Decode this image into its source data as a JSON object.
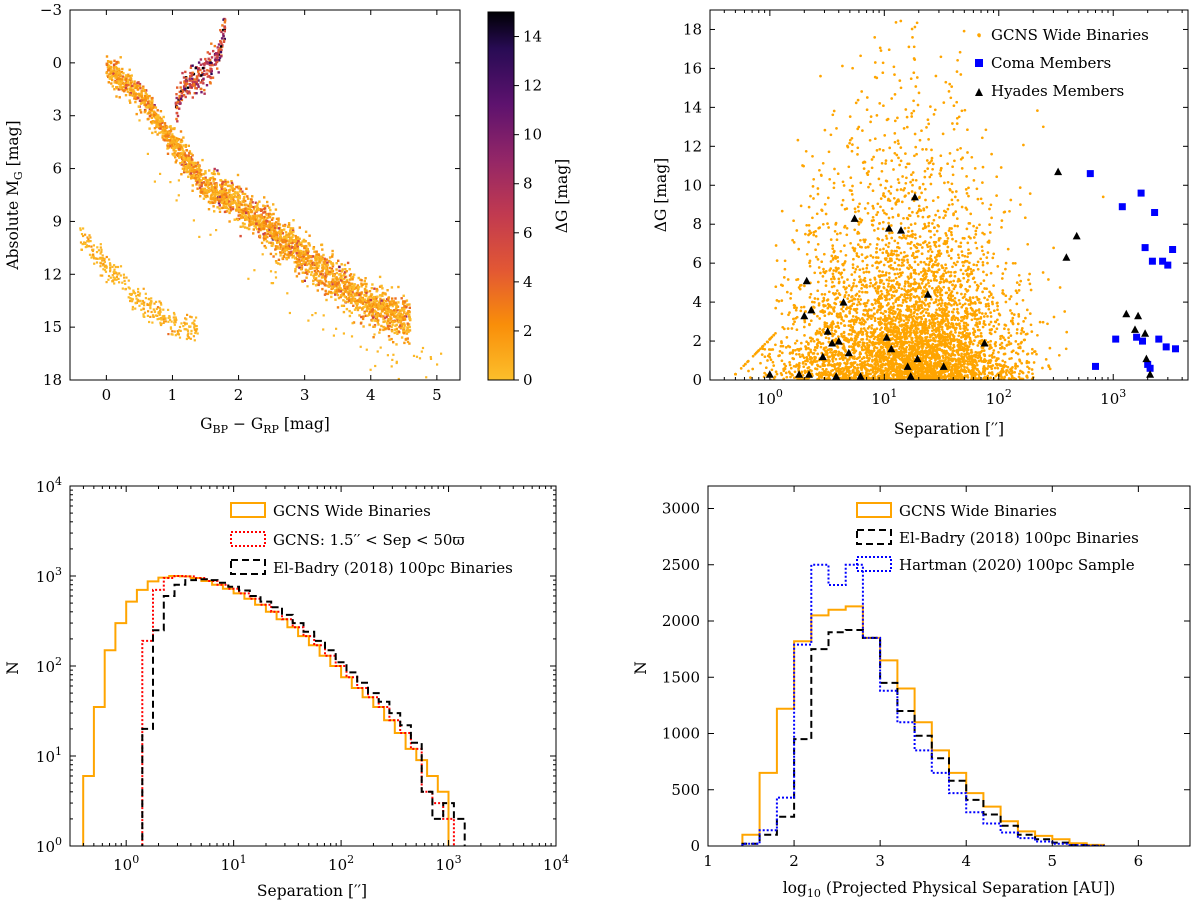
{
  "chart_data": [
    {
      "id": "cmd",
      "type": "scatter",
      "xlabel": "G_BP − G_RP [mag]",
      "ylabel": "Absolute M_G [mag]",
      "xlim": [
        -0.55,
        5.35
      ],
      "ylim": [
        18,
        -3
      ],
      "xticks": [
        "0",
        "1",
        "2",
        "3",
        "4",
        "5"
      ],
      "yticks": [
        "−3",
        "0",
        "3",
        "6",
        "9",
        "12",
        "15",
        "18"
      ],
      "colorbar": {
        "label": "ΔG [mag]",
        "range": [
          0,
          15
        ],
        "ticks": [
          "0",
          "2",
          "4",
          "6",
          "8",
          "10",
          "12",
          "14"
        ]
      },
      "series": [
        {
          "name": "main sequence",
          "spine": [
            [
              0,
              0.3
            ],
            [
              0.5,
              1.7
            ],
            [
              1,
              4.5
            ],
            [
              1.5,
              7
            ],
            [
              2,
              8
            ],
            [
              2.5,
              9.5
            ],
            [
              3,
              11
            ],
            [
              3.5,
              12.5
            ],
            [
              4,
              13.8
            ],
            [
              4.5,
              14.5
            ]
          ]
        },
        {
          "name": "giant branch",
          "spine": [
            [
              1.05,
              2.5
            ],
            [
              1.2,
              1.2
            ],
            [
              1.5,
              0.5
            ],
            [
              1.7,
              -0.5
            ],
            [
              1.8,
              -2
            ]
          ]
        },
        {
          "name": "white dwarfs",
          "spine": [
            [
              -0.4,
              9.8
            ],
            [
              0,
              11.5
            ],
            [
              0.5,
              13.5
            ],
            [
              1,
              14.8
            ],
            [
              1.4,
              15.3
            ]
          ]
        }
      ]
    },
    {
      "id": "dg-sep",
      "type": "scatter",
      "xlabel": "Separation ['']",
      "ylabel": "ΔG [mag]",
      "xscale": "log",
      "xlim": [
        0.3,
        4500
      ],
      "ylim": [
        0,
        19
      ],
      "xticks": [
        "10^0",
        "10^1",
        "10^2",
        "10^3"
      ],
      "yticks": [
        "0",
        "2",
        "4",
        "6",
        "8",
        "10",
        "12",
        "14",
        "16",
        "18"
      ],
      "legend": [
        "GCNS Wide Binaries",
        "Coma Members",
        "Hyades Members"
      ],
      "coma": [
        [
          630,
          10.6
        ],
        [
          700,
          0.7
        ],
        [
          1050,
          2.1
        ],
        [
          1200,
          8.9
        ],
        [
          1600,
          2.2
        ],
        [
          1750,
          9.6
        ],
        [
          1800,
          2.0
        ],
        [
          1900,
          6.8
        ],
        [
          2000,
          0.8
        ],
        [
          2100,
          0.6
        ],
        [
          2200,
          6.1
        ],
        [
          2300,
          8.6
        ],
        [
          2500,
          2.1
        ],
        [
          2700,
          6.1
        ],
        [
          2900,
          1.7
        ],
        [
          3000,
          5.9
        ],
        [
          3300,
          6.7
        ],
        [
          3500,
          1.6
        ]
      ],
      "hyades": [
        [
          1.0,
          0.3
        ],
        [
          1.8,
          0.3
        ],
        [
          2.0,
          3.3
        ],
        [
          2.1,
          5.1
        ],
        [
          2.2,
          0.3
        ],
        [
          2.3,
          3.6
        ],
        [
          2.9,
          1.2
        ],
        [
          3.2,
          2.5
        ],
        [
          3.5,
          1.9
        ],
        [
          3.8,
          0.2
        ],
        [
          4.0,
          2.0
        ],
        [
          4.4,
          4.0
        ],
        [
          4.9,
          1.4
        ],
        [
          5.5,
          8.3
        ],
        [
          6.2,
          0.2
        ],
        [
          10.5,
          2.2
        ],
        [
          11.0,
          7.8
        ],
        [
          11.5,
          1.6
        ],
        [
          14.0,
          7.7
        ],
        [
          16.0,
          0.7
        ],
        [
          17.0,
          0.2
        ],
        [
          18.5,
          9.4
        ],
        [
          19.5,
          1.1
        ],
        [
          24.0,
          4.4
        ],
        [
          33.0,
          0.7
        ],
        [
          75.0,
          1.9
        ],
        [
          330.0,
          10.7
        ],
        [
          390.0,
          6.3
        ],
        [
          480.0,
          7.4
        ],
        [
          1300.0,
          3.4
        ],
        [
          1550.0,
          2.6
        ],
        [
          1650.0,
          3.3
        ],
        [
          1900.0,
          2.4
        ],
        [
          1950.0,
          1.1
        ],
        [
          2100.0,
          0.3
        ]
      ]
    },
    {
      "id": "sep-hist",
      "type": "histogram",
      "xlabel": "Separation ['']",
      "ylabel": "N",
      "xscale": "log",
      "yscale": "log",
      "xlim": [
        0.3,
        10000
      ],
      "ylim": [
        1,
        10000
      ],
      "xticks": [
        "10^0",
        "10^1",
        "10^2",
        "10^3",
        "10^4"
      ],
      "yticks": [
        "10^0",
        "10^1",
        "10^2",
        "10^3",
        "10^4"
      ],
      "legend": [
        "GCNS Wide Binaries",
        "GCNS: 1.5'' < Sep < 50ϖ",
        "El-Badry (2018) 100pc Binaries"
      ],
      "log_edges": [
        -0.4,
        -0.3,
        -0.2,
        -0.1,
        0.0,
        0.1,
        0.2,
        0.3,
        0.4,
        0.5,
        0.6,
        0.7,
        0.8,
        0.9,
        1.0,
        1.1,
        1.2,
        1.3,
        1.4,
        1.5,
        1.6,
        1.7,
        1.8,
        1.9,
        2.0,
        2.1,
        2.2,
        2.3,
        2.4,
        2.5,
        2.6,
        2.7,
        2.8,
        2.9,
        3.0,
        3.1,
        3.2,
        3.3,
        3.4,
        3.5,
        3.6
      ],
      "series": [
        {
          "name": "GCNS Wide Binaries",
          "color": "#FFA500",
          "style": "solid",
          "start_edge": -0.4,
          "values": [
            6,
            35,
            150,
            300,
            520,
            700,
            870,
            960,
            1000,
            990,
            950,
            880,
            800,
            720,
            640,
            560,
            480,
            400,
            330,
            270,
            215,
            170,
            130,
            100,
            75,
            57,
            45,
            35,
            25,
            18,
            12,
            9,
            6,
            4
          ]
        },
        {
          "name": "GCNS: 1.5'' < Sep < 50ϖ",
          "color": "#ff0000",
          "style": "dotted",
          "start_edge": 0.15,
          "values": [
            190,
            700,
            950,
            1000,
            990,
            950,
            880,
            800,
            720,
            640,
            560,
            480,
            400,
            330,
            270,
            215,
            170,
            130,
            100,
            75,
            57,
            45,
            35,
            25,
            18,
            12,
            4,
            3,
            2
          ]
        },
        {
          "name": "El-Badry (2018) 100pc Binaries",
          "color": "#000000",
          "style": "dashed",
          "start_edge": 0.15,
          "values": [
            20,
            250,
            600,
            800,
            900,
            920,
            900,
            840,
            760,
            690,
            600,
            520,
            450,
            370,
            300,
            240,
            190,
            150,
            110,
            85,
            65,
            50,
            40,
            30,
            22,
            14,
            4,
            2,
            3,
            2
          ]
        }
      ]
    },
    {
      "id": "phys-hist",
      "type": "histogram",
      "xlabel": "log10 (Projected Physical Separation [AU])",
      "ylabel": "N",
      "xlim": [
        1,
        6.6
      ],
      "ylim": [
        0,
        3200
      ],
      "xticks": [
        "1",
        "2",
        "3",
        "4",
        "5",
        "6"
      ],
      "yticks": [
        "0",
        "500",
        "1000",
        "1500",
        "2000",
        "2500",
        "3000"
      ],
      "legend": [
        "GCNS Wide Binaries",
        "El-Badry (2018) 100pc Binaries",
        "Hartman (2020) 100pc Sample"
      ],
      "edges": [
        1.4,
        1.6,
        1.8,
        2.0,
        2.2,
        2.4,
        2.6,
        2.8,
        3.0,
        3.2,
        3.4,
        3.6,
        3.8,
        4.0,
        4.2,
        4.4,
        4.6,
        4.8,
        5.0,
        5.2,
        5.4,
        5.6
      ],
      "series": [
        {
          "name": "GCNS Wide Binaries",
          "color": "#FFA500",
          "style": "solid",
          "values": [
            100,
            650,
            1220,
            1820,
            2050,
            2100,
            2130,
            1850,
            1650,
            1400,
            1100,
            850,
            650,
            470,
            350,
            220,
            130,
            90,
            60,
            25,
            10
          ]
        },
        {
          "name": "El-Badry (2018) 100pc Binaries",
          "color": "#000000",
          "style": "dashed",
          "values": [
            20,
            100,
            260,
            950,
            1750,
            1900,
            1920,
            1850,
            1450,
            1200,
            980,
            780,
            580,
            410,
            280,
            180,
            100,
            60,
            30,
            8,
            3
          ]
        },
        {
          "name": "Hartman (2020) 100pc Sample",
          "color": "#0000ff",
          "style": "dotted",
          "values": [
            20,
            140,
            430,
            1790,
            2500,
            2320,
            2500,
            1850,
            1380,
            1100,
            850,
            650,
            470,
            300,
            200,
            120,
            70,
            40,
            20,
            8,
            2
          ]
        }
      ]
    }
  ]
}
